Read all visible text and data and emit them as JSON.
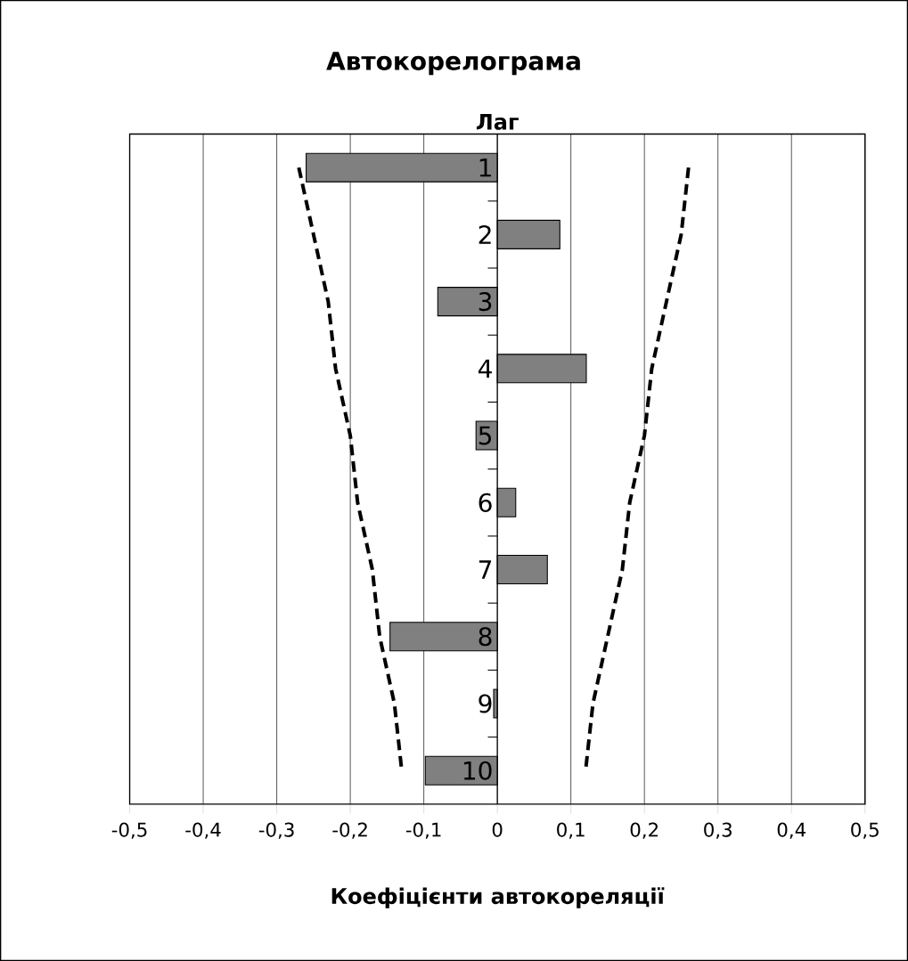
{
  "chart_data": {
    "type": "bar",
    "orientation": "horizontal",
    "title": "Автокорелограма",
    "ylabel": "Лаг",
    "xlabel": "Коефіцієнти автокореляції",
    "categories": [
      "1",
      "2",
      "3",
      "4",
      "5",
      "6",
      "7",
      "8",
      "9",
      "10"
    ],
    "series": [
      {
        "type": "bar",
        "color": "#808080",
        "values": [
          -0.26,
          0.085,
          -0.081,
          0.121,
          -0.029,
          0.025,
          0.068,
          -0.146,
          -0.005,
          -0.098
        ]
      },
      {
        "type": "line",
        "color": "#000000",
        "line_style": "dashed",
        "values": [
          -0.27,
          -0.25,
          -0.23,
          -0.22,
          -0.2,
          -0.19,
          -0.17,
          -0.16,
          -0.14,
          -0.13
        ]
      },
      {
        "type": "line",
        "color": "#000000",
        "line_style": "dashed",
        "values": [
          0.26,
          0.25,
          0.23,
          0.21,
          0.2,
          0.18,
          0.17,
          0.15,
          0.13,
          0.12
        ]
      }
    ],
    "xlim": [
      -0.5,
      0.5
    ],
    "xticks": [
      {
        "value": -0.5,
        "label": "-0,5"
      },
      {
        "value": -0.4,
        "label": "-0,4"
      },
      {
        "value": -0.3,
        "label": "-0,3"
      },
      {
        "value": -0.2,
        "label": "-0,2"
      },
      {
        "value": -0.1,
        "label": "-0,1"
      },
      0,
      {
        "value": 0.1,
        "label": "0,1"
      },
      {
        "value": 0.2,
        "label": "0,2"
      },
      {
        "value": 0.3,
        "label": "0,3"
      },
      {
        "value": 0.4,
        "label": "0,4"
      },
      {
        "value": 0.5,
        "label": "0,5"
      }
    ],
    "grid": "x"
  }
}
